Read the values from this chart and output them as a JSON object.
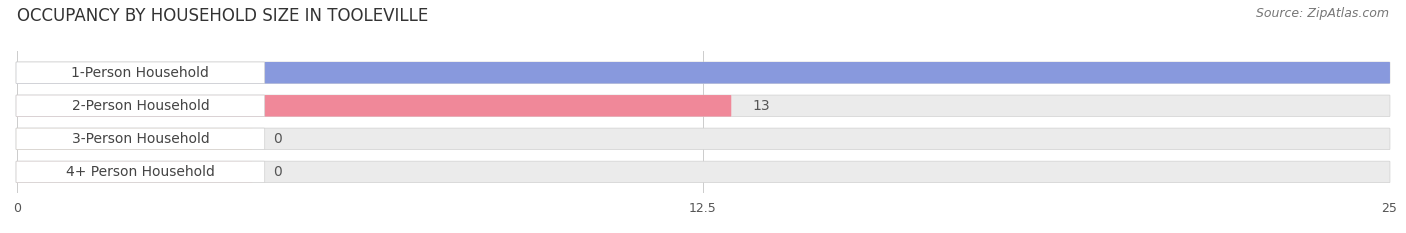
{
  "title": "OCCUPANCY BY HOUSEHOLD SIZE IN TOOLEVILLE",
  "source": "Source: ZipAtlas.com",
  "categories": [
    "1-Person Household",
    "2-Person Household",
    "3-Person Household",
    "4+ Person Household"
  ],
  "values": [
    25,
    13,
    0,
    0
  ],
  "bar_colors": [
    "#8899dd",
    "#f08899",
    "#f5c080",
    "#f0a0a0"
  ],
  "xlim": [
    0,
    25
  ],
  "xticks": [
    0,
    12.5,
    25
  ],
  "background_color": "#ffffff",
  "bar_bg_color": "#ebebeb",
  "white_label_bg": "#ffffff",
  "title_fontsize": 12,
  "source_fontsize": 9,
  "label_fontsize": 10,
  "value_fontsize": 10
}
